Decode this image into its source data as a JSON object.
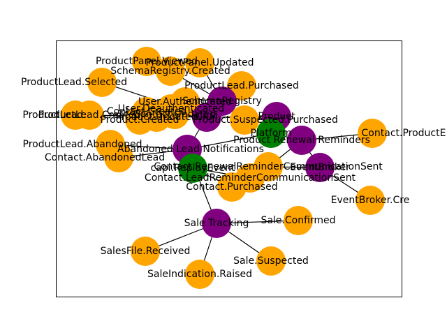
{
  "colors": {
    "event": "#ffa500",
    "service": "#800080",
    "broker": "#008000",
    "edge": "#000000"
  },
  "nodes": [
    {
      "id": "ProductPanel.Viewed",
      "label": "ProductPanel.Viewed",
      "kind": "event"
    },
    {
      "id": "ProductPanel.Updated",
      "label": "ProductPanel.Updated",
      "kind": "event"
    },
    {
      "id": "SchemaRegistry.Created",
      "label": "SchemaRegistry.Created",
      "kind": "event"
    },
    {
      "id": "ProductLead.Selected",
      "label": "ProductLead.Selected",
      "kind": "event"
    },
    {
      "id": "ProductLead.Purchased",
      "label": "ProductLead.Purchased",
      "kind": "event"
    },
    {
      "id": "SchemaRegistry",
      "label": "SchemaRegistry",
      "kind": "service"
    },
    {
      "id": "UserAuthenticated",
      "label": "User.Authenticated",
      "kind": "event"
    },
    {
      "id": "UserDeauth",
      "label": "User.Deauthenticated",
      "kind": "event"
    },
    {
      "id": "ProductLead.Created",
      "label": "ProductLead.Created",
      "kind": "event"
    },
    {
      "id": "Contact.Created",
      "label": "Contact.Created",
      "kind": "event"
    },
    {
      "id": "Product.Created",
      "label": "Product.Created",
      "kind": "event"
    },
    {
      "id": "Product.Updated",
      "label": "Product.Updated",
      "kind": "event"
    },
    {
      "id": "Contact.Updated",
      "label": "Contact.Updated",
      "kind": "event"
    },
    {
      "id": "CRM",
      "label": "CRM",
      "kind": "service"
    },
    {
      "id": "Product",
      "label": "Product",
      "kind": "service"
    },
    {
      "id": "Purchased",
      "label": "Product.Suspected.Purchased",
      "kind": "event"
    },
    {
      "id": "ProductLead.Abandoned",
      "label": "ProductLead.Abandoned",
      "kind": "event"
    },
    {
      "id": "Contact.AbandonedLead",
      "label": "Contact.AbandonedLead",
      "kind": "event"
    },
    {
      "id": "AbandonedLeadNotifications",
      "label": "Abandoned Lead Notifications",
      "kind": "service"
    },
    {
      "id": "Platform",
      "label": "Platform",
      "kind": "broker"
    },
    {
      "id": "ProductRenewalReminders",
      "label": "Product Renewal Reminders",
      "kind": "service"
    },
    {
      "id": "Contact.ProductExpiry",
      "label": "Contact.ProductE",
      "kind": "event"
    },
    {
      "id": "EventBroker",
      "label": "EventBroker",
      "kind": "service"
    },
    {
      "id": "ContactRenewal",
      "label": "Contact.RenewalReminderCommunicationSent",
      "kind": "event"
    },
    {
      "id": "CapEvent",
      "label": "capi.ReplayEvent",
      "kind": "broker"
    },
    {
      "id": "ContactLeadReminder",
      "label": "Contact.LeadReminderCommunicationSent",
      "kind": "event"
    },
    {
      "id": "EventBroker.Created",
      "label": "EventBroker.Cre",
      "kind": "event"
    },
    {
      "id": "Contact.Purchased",
      "label": "Contact.Purchased",
      "kind": "event"
    },
    {
      "id": "SaleTracking",
      "label": "Sale Tracking",
      "kind": "service"
    },
    {
      "id": "Sale.Confirmed",
      "label": "Sale.Confirmed",
      "kind": "event"
    },
    {
      "id": "SalesFile.Received",
      "label": "SalesFile.Received",
      "kind": "event"
    },
    {
      "id": "Sale.Suspected",
      "label": "Sale.Suspected",
      "kind": "event"
    },
    {
      "id": "SaleIndication.Raised",
      "label": "SaleIndication.Raised",
      "kind": "event"
    },
    {
      "id": "ProductLead.Left",
      "label": "ProductLead.",
      "kind": "event"
    }
  ],
  "edges": [
    [
      "ProductLead.Selected",
      "CRM"
    ],
    [
      "SchemaRegistry.Created",
      "SchemaRegistry"
    ],
    [
      "ProductLead.Purchased",
      "CRM"
    ],
    [
      "ProductPanel.Updated",
      "SchemaRegistry"
    ],
    [
      "ProductLead.Created",
      "CRM"
    ],
    [
      "Contact.Created",
      "CRM"
    ],
    [
      "CRM",
      "AbandonedLeadNotifications"
    ],
    [
      "CRM",
      "Product"
    ],
    [
      "Product",
      "Purchased"
    ],
    [
      "AbandonedLeadNotifications",
      "ProductLead.Abandoned"
    ],
    [
      "AbandonedLeadNotifications",
      "Contact.AbandonedLead"
    ],
    [
      "AbandonedLeadNotifications",
      "CapEvent"
    ],
    [
      "AbandonedLeadNotifications",
      "Platform"
    ],
    [
      "AbandonedLeadNotifications",
      "SaleTracking"
    ],
    [
      "Platform",
      "ProductRenewalReminders"
    ],
    [
      "ProductRenewalReminders",
      "Contact.ProductExpiry"
    ],
    [
      "ProductRenewalReminders",
      "EventBroker"
    ],
    [
      "EventBroker",
      "EventBroker.Created"
    ],
    [
      "EventBroker",
      "ContactRenewal"
    ],
    [
      "ProductRenewalReminders",
      "ContactRenewal"
    ],
    [
      "CapEvent",
      "ContactLeadReminder"
    ],
    [
      "CapEvent",
      "Contact.Purchased"
    ],
    [
      "SaleTracking",
      "Sale.Confirmed"
    ],
    [
      "SaleTracking",
      "SalesFile.Received"
    ],
    [
      "SaleTracking",
      "Sale.Suspected"
    ],
    [
      "SaleTracking",
      "SaleIndication.Raised"
    ]
  ]
}
